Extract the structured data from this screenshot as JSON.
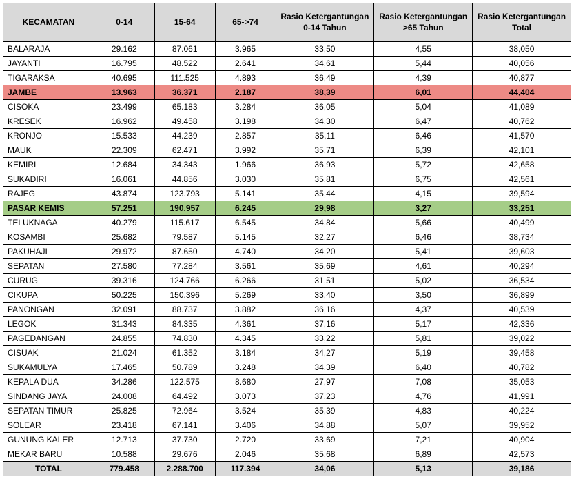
{
  "table": {
    "headers": [
      "KECAMATAN",
      "0-14",
      "15-64",
      "65->74",
      "Rasio Ketergantungan 0-14 Tahun",
      "Rasio Ketergantungan >65 Tahun",
      "Rasio Ketergantungan Total"
    ],
    "column_widths": [
      "120px",
      "80px",
      "80px",
      "80px",
      "130px",
      "130px",
      "130px"
    ],
    "header_bg": "#d9d9d9",
    "highlight_red_bg": "#ed8a85",
    "highlight_green_bg": "#a5cd87",
    "total_bg": "#d9d9d9",
    "border_color": "#000000",
    "font_size": 12,
    "rows": [
      {
        "cells": [
          "BALARAJA",
          "29.162",
          "87.061",
          "3.965",
          "33,50",
          "4,55",
          "38,050"
        ],
        "highlight": null
      },
      {
        "cells": [
          "JAYANTI",
          "16.795",
          "48.522",
          "2.641",
          "34,61",
          "5,44",
          "40,056"
        ],
        "highlight": null
      },
      {
        "cells": [
          "TIGARAKSA",
          "40.695",
          "111.525",
          "4.893",
          "36,49",
          "4,39",
          "40,877"
        ],
        "highlight": null
      },
      {
        "cells": [
          "JAMBE",
          "13.963",
          "36.371",
          "2.187",
          "38,39",
          "6,01",
          "44,404"
        ],
        "highlight": "red"
      },
      {
        "cells": [
          "CISOKA",
          "23.499",
          "65.183",
          "3.284",
          "36,05",
          "5,04",
          "41,089"
        ],
        "highlight": null
      },
      {
        "cells": [
          "KRESEK",
          "16.962",
          "49.458",
          "3.198",
          "34,30",
          "6,47",
          "40,762"
        ],
        "highlight": null
      },
      {
        "cells": [
          "KRONJO",
          "15.533",
          "44.239",
          "2.857",
          "35,11",
          "6,46",
          "41,570"
        ],
        "highlight": null
      },
      {
        "cells": [
          "MAUK",
          "22.309",
          "62.471",
          "3.992",
          "35,71",
          "6,39",
          "42,101"
        ],
        "highlight": null
      },
      {
        "cells": [
          "KEMIRI",
          "12.684",
          "34.343",
          "1.966",
          "36,93",
          "5,72",
          "42,658"
        ],
        "highlight": null
      },
      {
        "cells": [
          "SUKADIRI",
          "16.061",
          "44.856",
          "3.030",
          "35,81",
          "6,75",
          "42,561"
        ],
        "highlight": null
      },
      {
        "cells": [
          "RAJEG",
          "43.874",
          "123.793",
          "5.141",
          "35,44",
          "4,15",
          "39,594"
        ],
        "highlight": null
      },
      {
        "cells": [
          "PASAR KEMIS",
          "57.251",
          "190.957",
          "6.245",
          "29,98",
          "3,27",
          "33,251"
        ],
        "highlight": "green"
      },
      {
        "cells": [
          "TELUKNAGA",
          "40.279",
          "115.617",
          "6.545",
          "34,84",
          "5,66",
          "40,499"
        ],
        "highlight": null
      },
      {
        "cells": [
          "KOSAMBI",
          "25.682",
          "79.587",
          "5.145",
          "32,27",
          "6,46",
          "38,734"
        ],
        "highlight": null
      },
      {
        "cells": [
          "PAKUHAJI",
          "29.972",
          "87.650",
          "4.740",
          "34,20",
          "5,41",
          "39,603"
        ],
        "highlight": null
      },
      {
        "cells": [
          "SEPATAN",
          "27.580",
          "77.284",
          "3.561",
          "35,69",
          "4,61",
          "40,294"
        ],
        "highlight": null
      },
      {
        "cells": [
          "CURUG",
          "39.316",
          "124.766",
          "6.266",
          "31,51",
          "5,02",
          "36,534"
        ],
        "highlight": null
      },
      {
        "cells": [
          "CIKUPA",
          "50.225",
          "150.396",
          "5.269",
          "33,40",
          "3,50",
          "36,899"
        ],
        "highlight": null
      },
      {
        "cells": [
          "PANONGAN",
          "32.091",
          "88.737",
          "3.882",
          "36,16",
          "4,37",
          "40,539"
        ],
        "highlight": null
      },
      {
        "cells": [
          "LEGOK",
          "31.343",
          "84.335",
          "4.361",
          "37,16",
          "5,17",
          "42,336"
        ],
        "highlight": null
      },
      {
        "cells": [
          "PAGEDANGAN",
          "24.855",
          "74.830",
          "4.345",
          "33,22",
          "5,81",
          "39,022"
        ],
        "highlight": null
      },
      {
        "cells": [
          "CISUAK",
          "21.024",
          "61.352",
          "3.184",
          "34,27",
          "5,19",
          "39,458"
        ],
        "highlight": null
      },
      {
        "cells": [
          "SUKAMULYA",
          "17.465",
          "50.789",
          "3.248",
          "34,39",
          "6,40",
          "40,782"
        ],
        "highlight": null
      },
      {
        "cells": [
          "KEPALA DUA",
          "34.286",
          "122.575",
          "8.680",
          "27,97",
          "7,08",
          "35,053"
        ],
        "highlight": null
      },
      {
        "cells": [
          "SINDANG JAYA",
          "24.008",
          "64.492",
          "3.073",
          "37,23",
          "4,76",
          "41,991"
        ],
        "highlight": null
      },
      {
        "cells": [
          "SEPATAN TIMUR",
          "25.825",
          "72.964",
          "3.524",
          "35,39",
          "4,83",
          "40,224"
        ],
        "highlight": null
      },
      {
        "cells": [
          "SOLEAR",
          "23.418",
          "67.141",
          "3.406",
          "34,88",
          "5,07",
          "39,952"
        ],
        "highlight": null
      },
      {
        "cells": [
          "GUNUNG KALER",
          "12.713",
          "37.730",
          "2.720",
          "33,69",
          "7,21",
          "40,904"
        ],
        "highlight": null
      },
      {
        "cells": [
          "MEKAR BARU",
          "10.588",
          "29.676",
          "2.046",
          "35,68",
          "6,89",
          "42,573"
        ],
        "highlight": null
      }
    ],
    "total": {
      "cells": [
        "TOTAL",
        "779.458",
        "2.288.700",
        "117.394",
        "34,06",
        "5,13",
        "39,186"
      ]
    }
  }
}
